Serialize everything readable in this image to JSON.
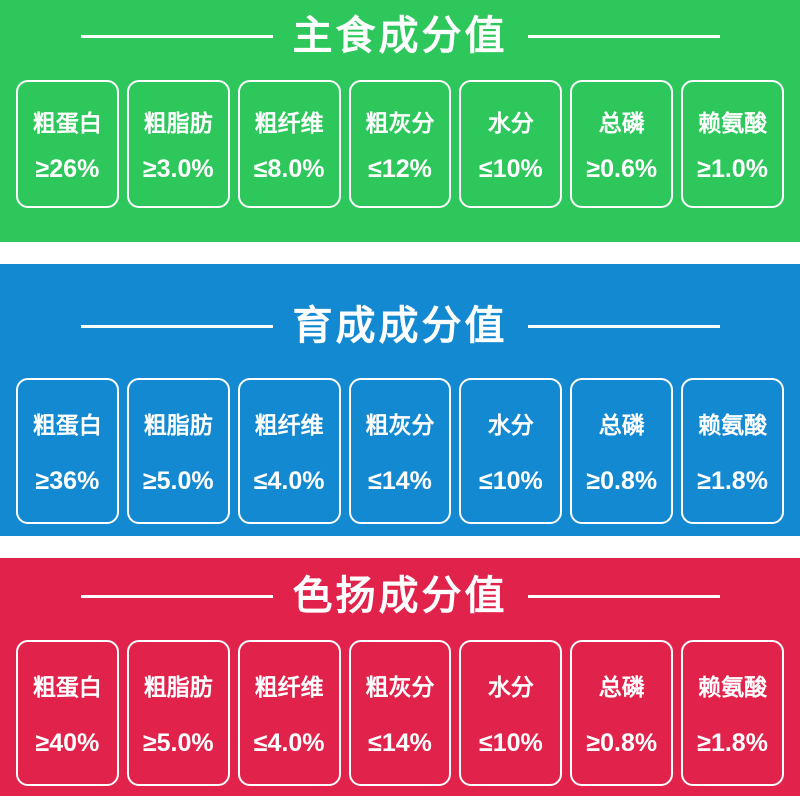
{
  "text_color": "#ffffff",
  "chart_data": [
    {
      "type": "table",
      "title": "主食成分值",
      "panel_color": "#2dc75c",
      "items": [
        {
          "label": "粗蛋白",
          "value": "≥26%"
        },
        {
          "label": "粗脂肪",
          "value": "≥3.0%"
        },
        {
          "label": "粗纤维",
          "value": "≤8.0%"
        },
        {
          "label": "粗灰分",
          "value": "≤12%"
        },
        {
          "label": "水分",
          "value": "≤10%"
        },
        {
          "label": "总磷",
          "value": "≥0.6%"
        },
        {
          "label": "赖氨酸",
          "value": "≥1.0%"
        }
      ]
    },
    {
      "type": "table",
      "title": "育成成分值",
      "panel_color": "#1389d2",
      "items": [
        {
          "label": "粗蛋白",
          "value": "≥36%"
        },
        {
          "label": "粗脂肪",
          "value": "≥5.0%"
        },
        {
          "label": "粗纤维",
          "value": "≤4.0%"
        },
        {
          "label": "粗灰分",
          "value": "≤14%"
        },
        {
          "label": "水分",
          "value": "≤10%"
        },
        {
          "label": "总磷",
          "value": "≥0.8%"
        },
        {
          "label": "赖氨酸",
          "value": "≥1.8%"
        }
      ]
    },
    {
      "type": "table",
      "title": "色扬成分值",
      "panel_color": "#e1234c",
      "items": [
        {
          "label": "粗蛋白",
          "value": "≥40%"
        },
        {
          "label": "粗脂肪",
          "value": "≥5.0%"
        },
        {
          "label": "粗纤维",
          "value": "≤4.0%"
        },
        {
          "label": "粗灰分",
          "value": "≤14%"
        },
        {
          "label": "水分",
          "value": "≤10%"
        },
        {
          "label": "总磷",
          "value": "≥0.8%"
        },
        {
          "label": "赖氨酸",
          "value": "≥1.8%"
        }
      ]
    }
  ]
}
